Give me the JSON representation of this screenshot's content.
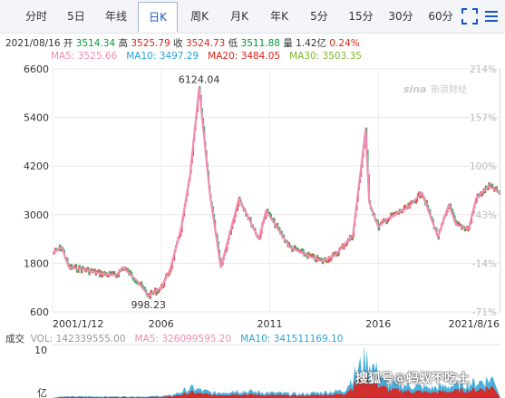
{
  "tabs": [
    {
      "label": "分时",
      "active": false
    },
    {
      "label": "5日",
      "active": false
    },
    {
      "label": "年线",
      "active": false
    },
    {
      "label": "日K",
      "active": true
    },
    {
      "label": "周K",
      "active": false
    },
    {
      "label": "月K",
      "active": false
    },
    {
      "label": "年K",
      "active": false
    },
    {
      "label": "5分",
      "active": false
    },
    {
      "label": "15分",
      "active": false
    },
    {
      "label": "30分",
      "active": false
    },
    {
      "label": "60分",
      "active": false
    }
  ],
  "toolbar": {
    "fullscreen_icon": "fullscreen-icon",
    "more_icon": "menu-icon"
  },
  "quote": {
    "date": "2021/08/16",
    "open_label": "开",
    "open": "3514.34",
    "high_label": "高",
    "high": "3525.79",
    "close_label": "收",
    "close": "3524.73",
    "low_label": "低",
    "low": "3511.88",
    "volume_label": "量",
    "volume": "1.42亿",
    "change": "0.24%"
  },
  "ma": {
    "ma5": "MA5: 3525.66",
    "ma10": "MA10: 3497.29",
    "ma20": "MA20: 3484.05",
    "ma30": "MA30: 3503.35"
  },
  "vol_info": {
    "label": "成交",
    "vol": "VOL: 142339555.00",
    "ma5": "MA5: 326099595.20",
    "ma10": "MA10: 341511169.10"
  },
  "logo_text": "新浪财经",
  "watermark": "搜狐号@蚂蚁不吃土",
  "colors": {
    "up": "#e0201a",
    "down": "#00983a",
    "ma5": "#f08cb4",
    "ma10": "#2aa3d6",
    "ma20": "#e0201a",
    "ma30": "#7cb82f",
    "active_tab": "#1a57c6"
  },
  "chart_data": [
    {
      "type": "line",
      "title": "",
      "y_ticks": [
        600,
        1800,
        3000,
        4200,
        5400,
        6600
      ],
      "y_tick_labels": [
        "600",
        "1800",
        "3000",
        "4200",
        "5400",
        "6600"
      ],
      "right_ticks": [
        "214%",
        "157%",
        "100%",
        "43%",
        "-14%",
        "-71%"
      ],
      "x_tick_labels": [
        "2001/1/12",
        "2006",
        "2011",
        "2016",
        "2021/8/16"
      ],
      "ylim": [
        600,
        6600
      ],
      "grid": true,
      "annotations": [
        {
          "label": "6124.04",
          "x": "2007/10",
          "y": 6124.04
        },
        {
          "label": "998.23",
          "x": "2005/6",
          "y": 998.23
        }
      ],
      "series": [
        {
          "x": [
            "2001/01",
            "2001/06",
            "2001/10",
            "2002/06",
            "2003/03",
            "2003/12",
            "2004/04",
            "2004/12",
            "2005/06",
            "2006/01",
            "2006/06",
            "2006/12",
            "2007/05",
            "2007/10",
            "2008/04",
            "2008/10",
            "2009/08",
            "2010/07",
            "2010/11",
            "2011/12",
            "2012/12",
            "2013/06",
            "2014/01",
            "2014/11",
            "2015/06",
            "2015/08",
            "2016/01",
            "2016/06",
            "2017/06",
            "2018/01",
            "2018/10",
            "2019/04",
            "2019/08",
            "2020/03",
            "2020/07",
            "2021/02",
            "2021/06",
            "2021/08"
          ],
          "values": [
            2050,
            2200,
            1700,
            1650,
            1550,
            1500,
            1700,
            1350,
            1000,
            1200,
            1650,
            2650,
            4000,
            6124,
            3500,
            1700,
            3400,
            2400,
            3100,
            2200,
            1950,
            1850,
            2000,
            2500,
            5100,
            3300,
            2700,
            2900,
            3200,
            3550,
            2450,
            3250,
            2750,
            2650,
            3400,
            3700,
            3600,
            3525
          ]
        }
      ]
    },
    {
      "type": "area",
      "title": "",
      "y_tick_labels": [
        "10",
        "亿"
      ],
      "series": [
        {
          "x": [
            "2001",
            "2003",
            "2005",
            "2006",
            "2007",
            "2008",
            "2009",
            "2010",
            "2012",
            "2014",
            "2015",
            "2016",
            "2018",
            "2020",
            "2021"
          ],
          "values": [
            0.3,
            0.3,
            0.3,
            0.5,
            2.0,
            1.0,
            1.5,
            1.2,
            0.8,
            1.5,
            8.0,
            3.0,
            2.0,
            3.0,
            4.0
          ]
        }
      ]
    }
  ]
}
